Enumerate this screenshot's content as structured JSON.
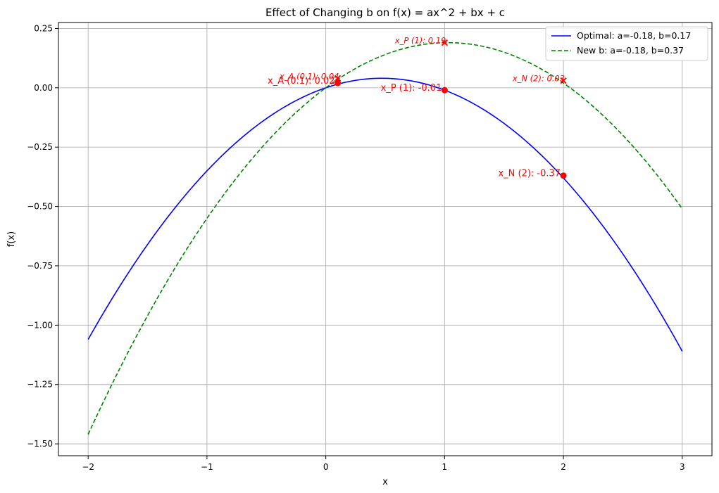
{
  "chart_data": {
    "type": "line",
    "title": "Effect of Changing b on f(x) = ax^2 + bx + c",
    "xlabel": "x",
    "ylabel": "f(x)",
    "xlim": [
      -2.25,
      3.25
    ],
    "ylim": [
      -1.55,
      0.275
    ],
    "xticks": [
      -2,
      -1,
      0,
      1,
      2,
      3
    ],
    "xtick_labels": [
      "−2",
      "−1",
      "0",
      "1",
      "2",
      "3"
    ],
    "yticks": [
      0.25,
      0.0,
      -0.25,
      -0.5,
      -0.75,
      -1.0,
      -1.25,
      -1.5
    ],
    "ytick_labels": [
      "0.25",
      "0.00",
      "−0.25",
      "−0.50",
      "−0.75",
      "−1.00",
      "−1.25",
      "−1.50"
    ],
    "grid": true,
    "legend_position": "top-right",
    "series": [
      {
        "name": "Optimal: a=-0.18, b=0.17",
        "color": "#0000ff",
        "style": "solid",
        "a": -0.18,
        "b": 0.17,
        "c": 0.0,
        "x_range": [
          -2,
          3
        ],
        "points": [
          {
            "x": 0.1,
            "y": 0.02,
            "label": "x_A (0.1): 0.02"
          },
          {
            "x": 1,
            "y": -0.01,
            "label": "x_P (1): -0.01"
          },
          {
            "x": 2,
            "y": -0.37,
            "label": "x_N (2): -0.37"
          }
        ],
        "marker": "circle"
      },
      {
        "name": "New b: a=-0.18, b=0.37",
        "color": "#008000",
        "style": "dashed",
        "a": -0.18,
        "b": 0.37,
        "c": 0.0,
        "x_range": [
          -2,
          3
        ],
        "points": [
          {
            "x": 0.1,
            "y": 0.04,
            "label": "x_A (0.1): 0.04"
          },
          {
            "x": 1,
            "y": 0.19,
            "label": "x_P (1): 0.19"
          },
          {
            "x": 2,
            "y": 0.03,
            "label": "x_N (2): 0.03"
          }
        ],
        "marker": "x"
      }
    ],
    "annotation_color": "#ff0000"
  }
}
